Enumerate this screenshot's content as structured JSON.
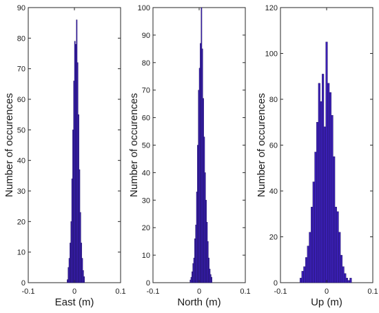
{
  "chart_data": [
    {
      "type": "bar",
      "xlabel": "East (m)",
      "ylabel": "Number of occurences",
      "xlim": [
        -0.1,
        0.1
      ],
      "ylim": [
        0,
        90
      ],
      "xticks": [
        "-0.1",
        "0",
        "0.1"
      ],
      "yticks": [
        "0",
        "10",
        "20",
        "30",
        "40",
        "50",
        "60",
        "70",
        "80",
        "90"
      ],
      "bar_color": "#3a1fb5",
      "bin_width": 0.002,
      "bin_start": -0.016,
      "values": [
        1,
        5,
        8,
        13,
        20,
        34,
        50,
        66,
        79,
        78,
        86,
        72,
        55,
        37,
        23,
        13,
        8,
        4,
        2
      ]
    },
    {
      "type": "bar",
      "xlabel": "North (m)",
      "ylabel": "Number of occurences",
      "xlim": [
        -0.1,
        0.1
      ],
      "ylim": [
        0,
        100
      ],
      "xticks": [
        "-0.1",
        "0",
        "0.1"
      ],
      "yticks": [
        "0",
        "10",
        "20",
        "30",
        "40",
        "50",
        "60",
        "70",
        "80",
        "90",
        "100"
      ],
      "bar_color": "#3a1fb5",
      "bin_width": 0.002,
      "bin_start": -0.02,
      "values": [
        1,
        2,
        4,
        7,
        9,
        16,
        21,
        33,
        50,
        70,
        78,
        87,
        100,
        85,
        67,
        53,
        40,
        30,
        22,
        15,
        9,
        5,
        3,
        2
      ]
    },
    {
      "type": "bar",
      "xlabel": "Up (m)",
      "ylabel": "Number of occurences",
      "xlim": [
        -0.1,
        0.1
      ],
      "ylim": [
        0,
        120
      ],
      "xticks": [
        "-0.1",
        "0",
        "0.1"
      ],
      "yticks": [
        "0",
        "20",
        "40",
        "60",
        "80",
        "100",
        "120"
      ],
      "bar_color": "#3a1fb5",
      "bin_width": 0.004,
      "bin_start": -0.058,
      "values": [
        2,
        5,
        7,
        11,
        16,
        22,
        33,
        44,
        57,
        70,
        87,
        79,
        91,
        68,
        105,
        87,
        83,
        73,
        55,
        33,
        31,
        22,
        12,
        7,
        4,
        2,
        1,
        2
      ]
    }
  ]
}
